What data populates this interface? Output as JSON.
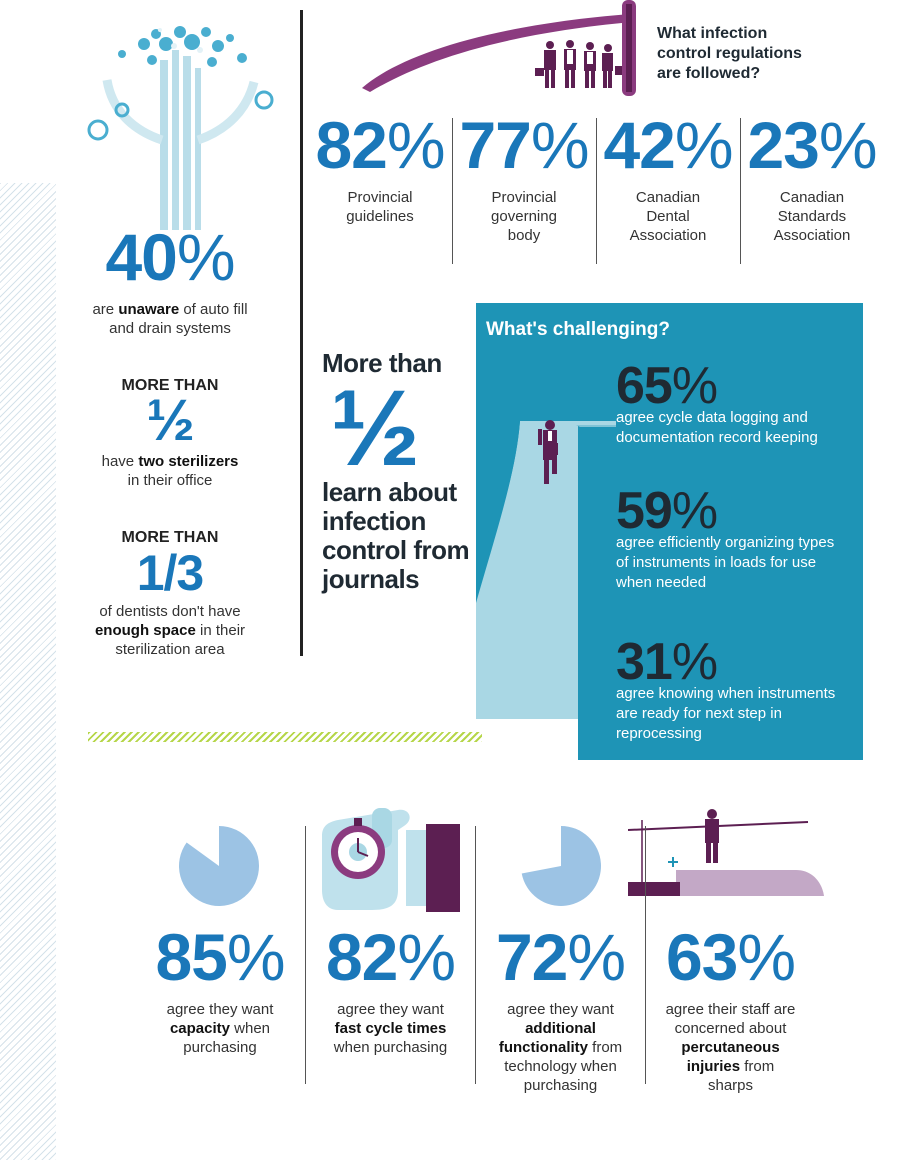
{
  "colors": {
    "accent_blue": "#1a77b9",
    "teal": "#1e94b6",
    "light_blue": "#a9d7e4",
    "purple": "#5c1f52",
    "lime": "#b6d64a"
  },
  "regulations": {
    "title_line1": "What infection",
    "title_line2": "control regulations",
    "title_line3": "are followed?",
    "items": [
      {
        "value": "82",
        "unit": "%",
        "label_lines": [
          "Provincial",
          "guidelines"
        ]
      },
      {
        "value": "77",
        "unit": "%",
        "label_lines": [
          "Provincial",
          "governing",
          "body"
        ]
      },
      {
        "value": "42",
        "unit": "%",
        "label_lines": [
          "Canadian",
          "Dental",
          "Association"
        ]
      },
      {
        "value": "23",
        "unit": "%",
        "label_lines": [
          "Canadian",
          "Standards",
          "Association"
        ]
      }
    ]
  },
  "left": {
    "autofill": {
      "value": "40",
      "unit": "%",
      "pre": "are ",
      "bold": "unaware",
      "post": " of auto fill",
      "line2": "and drain systems"
    },
    "sterilizers": {
      "heading": "MORE THAN",
      "fraction": "½",
      "pre": "have ",
      "bold": "two sterilizers",
      "line2": "in their office"
    },
    "space": {
      "heading": "MORE THAN",
      "fraction": "1/3",
      "line1": "of dentists don't have",
      "bold": "enough space",
      "post": " in their",
      "line3": "sterilization area"
    }
  },
  "journals": {
    "line1": "More than",
    "fraction": "½",
    "line2": "learn about",
    "line3": "infection",
    "line4": "control from",
    "line5": "journals"
  },
  "challenging": {
    "title": "What's challenging?",
    "items": [
      {
        "value": "65",
        "unit": "%",
        "lines": [
          "agree cycle data logging and",
          "documentation record keeping"
        ]
      },
      {
        "value": "59",
        "unit": "%",
        "lines": [
          "agree efficiently organizing types",
          "of instruments in loads for use",
          "when needed"
        ]
      },
      {
        "value": "31",
        "unit": "%",
        "lines": [
          "agree knowing when instruments",
          "are ready for next step in",
          "reprocessing"
        ]
      }
    ]
  },
  "purchasing": [
    {
      "value": "85",
      "unit": "%",
      "fraction": 0.85,
      "lines": [
        {
          "t": "agree they want"
        },
        {
          "b": "capacity",
          "t": " when"
        },
        {
          "t": "purchasing"
        }
      ]
    },
    {
      "value": "82",
      "unit": "%",
      "lines": [
        {
          "t": "agree they want"
        },
        {
          "b": "fast cycle times"
        },
        {
          "t": "when purchasing"
        }
      ]
    },
    {
      "value": "72",
      "unit": "%",
      "fraction": 0.72,
      "lines": [
        {
          "t": "agree they want"
        },
        {
          "b": "additional"
        },
        {
          "b": "functionality",
          "t": " from"
        },
        {
          "t": "technology when"
        },
        {
          "t": "purchasing"
        }
      ]
    },
    {
      "value": "63",
      "unit": "%",
      "lines": [
        {
          "t": "agree their staff are"
        },
        {
          "t": "concerned about"
        },
        {
          "b": "percutaneous"
        },
        {
          "b": "injuries",
          "t": " from"
        },
        {
          "t": "sharps"
        }
      ]
    }
  ]
}
